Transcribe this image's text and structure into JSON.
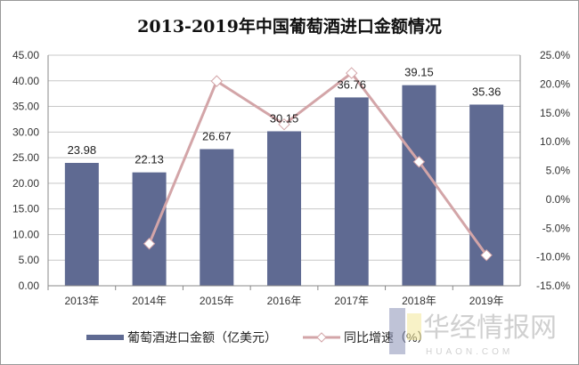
{
  "chart_data": {
    "type": "bar",
    "title": "2013-2019年中国葡萄酒进口金额情况",
    "categories": [
      "2013年",
      "2014年",
      "2015年",
      "2016年",
      "2017年",
      "2018年",
      "2019年"
    ],
    "series": [
      {
        "name": "葡萄酒进口金额（亿美元）",
        "type": "bar",
        "axis": "left",
        "color": "#5f6a92",
        "values": [
          23.98,
          22.13,
          26.67,
          30.15,
          36.76,
          39.15,
          35.36
        ],
        "labels": [
          "23.98",
          "22.13",
          "26.67",
          "30.15",
          "36.76",
          "39.15",
          "35.36"
        ]
      },
      {
        "name": "同比增速（%）",
        "type": "line",
        "axis": "right",
        "color": "#d3a5a8",
        "marker": "diamond",
        "values": [
          null,
          -7.7,
          20.5,
          13.0,
          21.9,
          6.5,
          -9.7
        ]
      }
    ],
    "y_left": {
      "lim": [
        0,
        45
      ],
      "ticks": [
        "0.00",
        "5.00",
        "10.00",
        "15.00",
        "20.00",
        "25.00",
        "30.00",
        "35.00",
        "40.00",
        "45.00"
      ]
    },
    "y_right": {
      "lim": [
        -15,
        25
      ],
      "ticks": [
        "-15.0%",
        "-10.0%",
        "-5.0%",
        "0.0%",
        "5.0%",
        "10.0%",
        "15.0%",
        "20.0%",
        "25.0%"
      ]
    },
    "grid": true,
    "legend": "bottom"
  },
  "watermark": {
    "text": "华经情报网",
    "sub": "HUAON.COM"
  }
}
